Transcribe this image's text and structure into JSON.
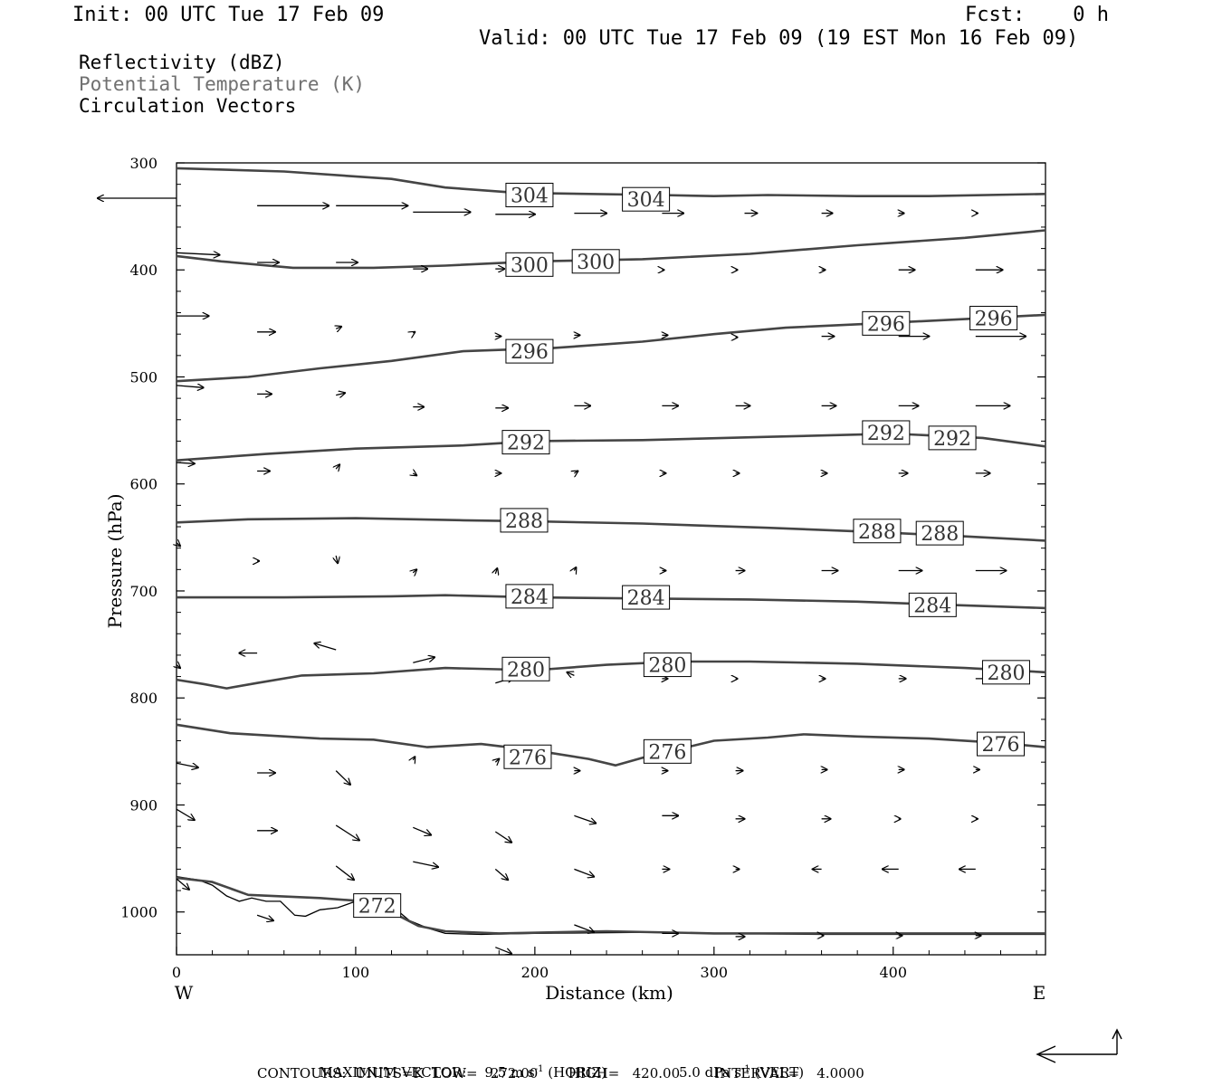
{
  "header": {
    "init": "Init: 00 UTC Tue 17 Feb 09",
    "fcst": "Fcst:    0 h",
    "valid": "Valid: 00 UTC Tue 17 Feb 09 (19 EST Mon 16 Feb 09)"
  },
  "legend": {
    "line1": "Reflectivity (dBZ)",
    "line2": "Potential Temperature (K)",
    "line3": "Circulation Vectors",
    "line2_color": "#707070"
  },
  "footer": {
    "line1_label": "MAXIMUM VECTOR:",
    "horiz_num": "9.5 m s",
    "horiz_unit": " (HORIZ)",
    "vert_num": "5.0 dPa s",
    "vert_unit": " (VERT)",
    "exp": "-1",
    "line2": "CONTOURS:  UNITS=K  LOW=   272.00       HIGH=   420.00        INTERVAL=    4.0000"
  },
  "chart_data": {
    "type": "line",
    "title": "",
    "xlabel": "Distance (km)",
    "ylabel": "Pressure (hPa)",
    "xlim": [
      0,
      485
    ],
    "ylim": [
      300,
      1040
    ],
    "y_inverted": true,
    "x_ticks": [
      0,
      100,
      200,
      300,
      400
    ],
    "y_ticks": [
      300,
      400,
      500,
      600,
      700,
      800,
      900,
      1000
    ],
    "x_end_labels": {
      "left": "W",
      "right": "E"
    },
    "contour_color": "#454545",
    "series": [
      {
        "name": "304",
        "points": [
          [
            0,
            305
          ],
          [
            60,
            308
          ],
          [
            120,
            315
          ],
          [
            150,
            323
          ],
          [
            190,
            328
          ],
          [
            270,
            330
          ],
          [
            300,
            331
          ],
          [
            330,
            330
          ],
          [
            380,
            331
          ],
          [
            420,
            331
          ],
          [
            485,
            329
          ]
        ],
        "labels": [
          [
            197,
            330
          ],
          [
            262,
            334
          ]
        ]
      },
      {
        "name": "300",
        "points": [
          [
            0,
            387
          ],
          [
            25,
            392
          ],
          [
            65,
            398
          ],
          [
            110,
            398
          ],
          [
            150,
            396
          ],
          [
            200,
            392
          ],
          [
            260,
            390
          ],
          [
            320,
            385
          ],
          [
            380,
            377
          ],
          [
            440,
            370
          ],
          [
            485,
            363
          ]
        ],
        "labels": [
          [
            197,
            395
          ],
          [
            234,
            392
          ]
        ]
      },
      {
        "name": "296",
        "points": [
          [
            0,
            504
          ],
          [
            40,
            500
          ],
          [
            80,
            492
          ],
          [
            120,
            485
          ],
          [
            160,
            476
          ],
          [
            210,
            473
          ],
          [
            260,
            467
          ],
          [
            300,
            460
          ],
          [
            340,
            454
          ],
          [
            390,
            450
          ],
          [
            440,
            446
          ],
          [
            485,
            442
          ]
        ],
        "labels": [
          [
            197,
            476
          ],
          [
            396,
            450
          ],
          [
            456,
            445
          ]
        ]
      },
      {
        "name": "292",
        "points": [
          [
            0,
            578
          ],
          [
            50,
            572
          ],
          [
            100,
            567
          ],
          [
            160,
            564
          ],
          [
            200,
            560
          ],
          [
            260,
            559
          ],
          [
            330,
            556
          ],
          [
            400,
            553
          ],
          [
            450,
            557
          ],
          [
            485,
            565
          ]
        ],
        "labels": [
          [
            195,
            561
          ],
          [
            396,
            552
          ],
          [
            433,
            557
          ]
        ]
      },
      {
        "name": "288",
        "points": [
          [
            0,
            636
          ],
          [
            40,
            633
          ],
          [
            100,
            632
          ],
          [
            160,
            634
          ],
          [
            200,
            635
          ],
          [
            260,
            637
          ],
          [
            330,
            641
          ],
          [
            390,
            645
          ],
          [
            440,
            649
          ],
          [
            485,
            653
          ]
        ],
        "labels": [
          [
            194,
            634
          ],
          [
            391,
            644
          ],
          [
            426,
            646
          ]
        ]
      },
      {
        "name": "284",
        "points": [
          [
            0,
            706
          ],
          [
            60,
            706
          ],
          [
            120,
            705
          ],
          [
            150,
            704
          ],
          [
            200,
            706
          ],
          [
            260,
            707
          ],
          [
            320,
            708
          ],
          [
            380,
            710
          ],
          [
            430,
            713
          ],
          [
            485,
            716
          ]
        ],
        "labels": [
          [
            197,
            705
          ],
          [
            262,
            706
          ],
          [
            422,
            713
          ]
        ]
      },
      {
        "name": "280",
        "points": [
          [
            0,
            783
          ],
          [
            15,
            787
          ],
          [
            28,
            791
          ],
          [
            45,
            786
          ],
          [
            70,
            779
          ],
          [
            110,
            777
          ],
          [
            150,
            772
          ],
          [
            200,
            774
          ],
          [
            240,
            769
          ],
          [
            280,
            766
          ],
          [
            320,
            766
          ],
          [
            380,
            768
          ],
          [
            440,
            772
          ],
          [
            485,
            776
          ]
        ],
        "labels": [
          [
            195,
            773
          ],
          [
            274,
            769
          ],
          [
            463,
            776
          ]
        ]
      },
      {
        "name": "276",
        "points": [
          [
            0,
            825
          ],
          [
            30,
            833
          ],
          [
            80,
            838
          ],
          [
            110,
            839
          ],
          [
            140,
            846
          ],
          [
            170,
            843
          ],
          [
            200,
            849
          ],
          [
            230,
            857
          ],
          [
            245,
            863
          ],
          [
            260,
            856
          ],
          [
            280,
            848
          ],
          [
            300,
            840
          ],
          [
            330,
            837
          ],
          [
            350,
            834
          ],
          [
            380,
            836
          ],
          [
            420,
            838
          ],
          [
            460,
            842
          ],
          [
            485,
            846
          ]
        ],
        "labels": [
          [
            196,
            855
          ],
          [
            274,
            850
          ],
          [
            460,
            843
          ]
        ]
      },
      {
        "name": "272",
        "points": [
          [
            0,
            968
          ],
          [
            20,
            972
          ],
          [
            40,
            984
          ],
          [
            80,
            987
          ],
          [
            105,
            990
          ],
          [
            120,
            1000
          ],
          [
            135,
            1013
          ],
          [
            150,
            1018
          ],
          [
            180,
            1020
          ],
          [
            240,
            1018
          ],
          [
            300,
            1020
          ],
          [
            370,
            1020
          ],
          [
            485,
            1020
          ]
        ],
        "labels": [
          [
            112,
            994
          ]
        ]
      }
    ],
    "terrain": [
      [
        0,
        967
      ],
      [
        12,
        970
      ],
      [
        20,
        975
      ],
      [
        28,
        985
      ],
      [
        35,
        990
      ],
      [
        42,
        987
      ],
      [
        50,
        990
      ],
      [
        58,
        990
      ],
      [
        66,
        1003
      ],
      [
        72,
        1004
      ],
      [
        80,
        998
      ],
      [
        90,
        996
      ],
      [
        100,
        990
      ],
      [
        110,
        987
      ],
      [
        120,
        994
      ],
      [
        130,
        1008
      ],
      [
        140,
        1015
      ],
      [
        150,
        1020
      ],
      [
        170,
        1021
      ],
      [
        200,
        1020
      ],
      [
        260,
        1019
      ],
      [
        300,
        1020
      ],
      [
        360,
        1021
      ],
      [
        485,
        1021
      ]
    ],
    "vectors": [
      [
        0,
        333,
        44,
        0
      ],
      [
        45,
        340,
        -40,
        0
      ],
      [
        89,
        340,
        -40,
        0
      ],
      [
        132,
        346,
        -32,
        0
      ],
      [
        178,
        348,
        -22,
        0
      ],
      [
        222,
        347,
        -18,
        0
      ],
      [
        271,
        347,
        -12,
        0
      ],
      [
        317,
        347,
        -7,
        0
      ],
      [
        360,
        347,
        -6,
        0
      ],
      [
        403,
        347,
        -3,
        0
      ],
      [
        446,
        347,
        -1,
        0
      ],
      [
        0,
        384,
        -24,
        -2
      ],
      [
        45,
        393,
        -12,
        0
      ],
      [
        89,
        393,
        -12,
        0
      ],
      [
        132,
        399,
        -8,
        0
      ],
      [
        178,
        399,
        -5,
        0
      ],
      [
        222,
        400,
        -3,
        0
      ],
      [
        271,
        400,
        -1,
        0
      ],
      [
        312,
        400,
        -1,
        0
      ],
      [
        360,
        400,
        -2,
        0
      ],
      [
        403,
        400,
        -9,
        0
      ],
      [
        446,
        400,
        -15,
        0
      ],
      [
        0,
        443,
        -18,
        0
      ],
      [
        45,
        458,
        -10,
        0
      ],
      [
        89,
        455,
        -3,
        2
      ],
      [
        132,
        459,
        -1,
        1
      ],
      [
        178,
        462,
        -3,
        0
      ],
      [
        222,
        461,
        -3,
        0
      ],
      [
        271,
        461,
        -3,
        0
      ],
      [
        312,
        463,
        -1,
        0
      ],
      [
        360,
        462,
        -7,
        0
      ],
      [
        403,
        462,
        -17,
        0
      ],
      [
        446,
        462,
        -28,
        0
      ],
      [
        0,
        508,
        -15,
        -2
      ],
      [
        45,
        516,
        -8,
        0
      ],
      [
        89,
        517,
        -5,
        2
      ],
      [
        132,
        528,
        -6,
        0
      ],
      [
        178,
        529,
        -7,
        0
      ],
      [
        222,
        527,
        -9,
        0
      ],
      [
        271,
        527,
        -9,
        0
      ],
      [
        312,
        527,
        -8,
        0
      ],
      [
        360,
        527,
        -8,
        0
      ],
      [
        403,
        527,
        -11,
        0
      ],
      [
        446,
        527,
        -19,
        0
      ],
      [
        0,
        580,
        -10,
        -1
      ],
      [
        45,
        588,
        -7,
        0
      ],
      [
        89,
        586,
        -2,
        4
      ],
      [
        132,
        590,
        -2,
        -2
      ],
      [
        178,
        590,
        -3,
        0
      ],
      [
        222,
        590,
        -2,
        2
      ],
      [
        271,
        590,
        -2,
        0
      ],
      [
        312,
        590,
        -2,
        0
      ],
      [
        360,
        590,
        -3,
        0
      ],
      [
        403,
        590,
        -5,
        0
      ],
      [
        446,
        590,
        -8,
        0
      ],
      [
        0,
        655,
        -2,
        -3
      ],
      [
        45,
        672,
        -1,
        0
      ],
      [
        89,
        667,
        -1,
        -7
      ],
      [
        132,
        683,
        -2,
        3
      ],
      [
        178,
        684,
        -1,
        5
      ],
      [
        222,
        681,
        -1,
        3
      ],
      [
        271,
        681,
        -2,
        0
      ],
      [
        312,
        681,
        -5,
        0
      ],
      [
        360,
        681,
        -9,
        0
      ],
      [
        403,
        681,
        -13,
        0
      ],
      [
        446,
        681,
        -17,
        0
      ],
      [
        0,
        769,
        -2,
        -3
      ],
      [
        45,
        758,
        10,
        0
      ],
      [
        89,
        755,
        12,
        6
      ],
      [
        132,
        767,
        -12,
        5
      ],
      [
        178,
        786,
        -10,
        5
      ],
      [
        222,
        779,
        4,
        3
      ],
      [
        271,
        782,
        -3,
        0
      ],
      [
        312,
        782,
        -1,
        0
      ],
      [
        360,
        782,
        -2,
        0
      ],
      [
        403,
        782,
        -4,
        0
      ],
      [
        446,
        782,
        -8,
        0
      ],
      [
        0,
        861,
        -12,
        -4
      ],
      [
        45,
        870,
        -10,
        0
      ],
      [
        89,
        868,
        -8,
        -13
      ],
      [
        132,
        858,
        -1,
        3
      ],
      [
        178,
        860,
        -2,
        3
      ],
      [
        222,
        868,
        -3,
        0
      ],
      [
        271,
        868,
        -3,
        0
      ],
      [
        312,
        868,
        -4,
        0
      ],
      [
        360,
        867,
        -3,
        0
      ],
      [
        403,
        867,
        -3,
        0
      ],
      [
        446,
        867,
        -2,
        0
      ],
      [
        0,
        904,
        -10,
        -10
      ],
      [
        45,
        924,
        -11,
        0
      ],
      [
        89,
        919,
        -13,
        -14
      ],
      [
        132,
        921,
        -10,
        -7
      ],
      [
        178,
        925,
        -9,
        -10
      ],
      [
        222,
        910,
        -12,
        -7
      ],
      [
        271,
        910,
        -9,
        0
      ],
      [
        312,
        913,
        -5,
        0
      ],
      [
        360,
        913,
        -5,
        0
      ],
      [
        403,
        913,
        -1,
        0
      ],
      [
        446,
        913,
        -1,
        0
      ],
      [
        0,
        969,
        -7,
        -10
      ],
      [
        45,
        1003,
        -9,
        -5
      ],
      [
        89,
        957,
        -10,
        -13
      ],
      [
        132,
        953,
        -14,
        -5
      ],
      [
        178,
        960,
        -7,
        -10
      ],
      [
        222,
        960,
        -11,
        -7
      ],
      [
        271,
        960,
        -4,
        0
      ],
      [
        312,
        960,
        -2,
        0
      ],
      [
        360,
        960,
        5,
        0
      ],
      [
        403,
        960,
        9,
        0
      ],
      [
        446,
        960,
        9,
        0
      ],
      [
        178,
        1033,
        -9,
        -6
      ],
      [
        222,
        1012,
        -11,
        -7
      ],
      [
        271,
        1020,
        -9,
        0
      ],
      [
        312,
        1023,
        -5,
        0
      ],
      [
        360,
        1022,
        -1,
        0
      ],
      [
        403,
        1022,
        -2,
        0
      ],
      [
        446,
        1022,
        -3,
        0
      ]
    ]
  }
}
